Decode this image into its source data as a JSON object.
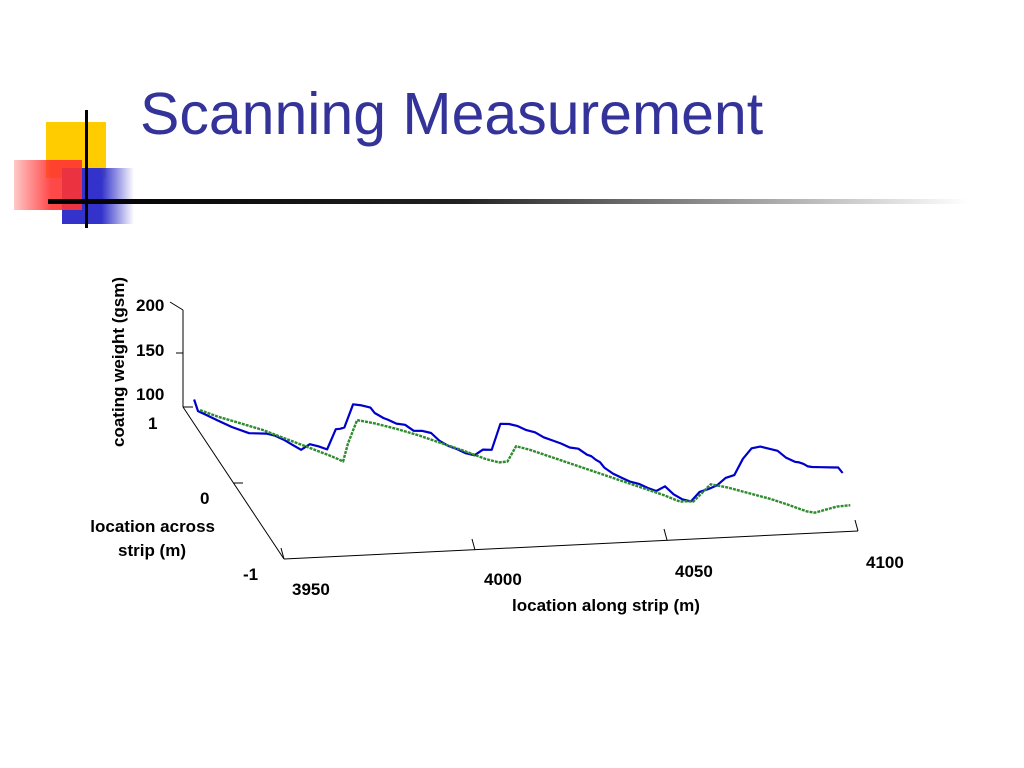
{
  "slide": {
    "title": "Scanning Measurement",
    "colors": {
      "title": "#333399",
      "deco_yellow": "#ffcc00",
      "deco_red": "#ff3333",
      "deco_blue": "#3333cc",
      "rule": "#000000"
    }
  },
  "chart_data": {
    "type": "line",
    "projection": "3d",
    "title": "",
    "xlabel": "location along strip (m)",
    "ylabel": "location across strip (m)",
    "zlabel": "coating weight (gsm)",
    "xlim": [
      3950,
      4100
    ],
    "ylim": [
      -1,
      1
    ],
    "zlim": [
      100,
      200
    ],
    "x_ticks": [
      "3950",
      "4000",
      "4050",
      "4100"
    ],
    "y_ticks": [
      "-1",
      "0",
      "1"
    ],
    "z_ticks": [
      "100",
      "150",
      "200"
    ],
    "grid": false,
    "series": [
      {
        "color": "#0000cc",
        "x": [
          3950.0,
          3950.5,
          3952,
          3955,
          3958,
          3962,
          3966,
          3968,
          3970,
          3972,
          3974,
          3976,
          3978,
          3980,
          3982,
          3983,
          3984,
          3986,
          3988,
          3990,
          3991,
          3992,
          3993,
          3994,
          3996,
          3998,
          4000,
          4002,
          4004,
          4006,
          4008,
          4010,
          4012,
          4014,
          4016,
          4018,
          4020,
          4022,
          4024,
          4026,
          4028,
          4030,
          4032,
          4034,
          4036,
          4038,
          4040,
          4041,
          4042,
          4043,
          4044,
          4046,
          4048,
          4050,
          4052,
          4054,
          4056,
          4058,
          4060,
          4062,
          4064,
          4066,
          4068,
          4070,
          4072,
          4074,
          4076,
          4078,
          4080,
          4082,
          4084,
          4086,
          4088,
          4089,
          4090,
          4091,
          4092,
          4094,
          4096,
          4098,
          4099
        ],
        "y": [
          0.78,
          0.74,
          0.72,
          0.68,
          0.64,
          0.6,
          0.56,
          0.54,
          0.52,
          0.5,
          0.48,
          0.46,
          0.44,
          0.42,
          0.4,
          0.39,
          0.38,
          0.36,
          0.34,
          0.32,
          0.31,
          0.3,
          0.29,
          0.28,
          0.26,
          0.24,
          0.22,
          0.2,
          0.18,
          0.16,
          0.14,
          0.12,
          0.1,
          0.08,
          0.06,
          0.04,
          0.02,
          0.0,
          -0.02,
          -0.04,
          -0.06,
          -0.08,
          -0.1,
          -0.12,
          -0.14,
          -0.16,
          -0.18,
          -0.19,
          -0.2,
          -0.21,
          -0.22,
          -0.24,
          -0.26,
          -0.28,
          -0.3,
          -0.32,
          -0.34,
          -0.36,
          -0.38,
          -0.4,
          -0.42,
          -0.44,
          -0.46,
          -0.48,
          -0.5,
          -0.52,
          -0.54,
          -0.56,
          -0.58,
          -0.6,
          -0.62,
          -0.64,
          -0.66,
          -0.67,
          -0.68,
          -0.69,
          -0.7,
          -0.72,
          -0.74,
          -0.76,
          -0.77
        ],
        "z": [
          125,
          116,
          114,
          110,
          106,
          102,
          104,
          103,
          100,
          96,
          92,
          99,
          98,
          96,
          118,
          119,
          121,
          146,
          146,
          145,
          140,
          138,
          136,
          135,
          132,
          132,
          127,
          128,
          127,
          120,
          116,
          114,
          111,
          110,
          117,
          118,
          146,
          147,
          146,
          143,
          142,
          138,
          136,
          134,
          131,
          131,
          126,
          125,
          122,
          120,
          115,
          110,
          107,
          104,
          103,
          100,
          98,
          104,
          97,
          93,
          92,
          103,
          107,
          112,
          121,
          125,
          143,
          155,
          158,
          157,
          156,
          150,
          147,
          147,
          146,
          144,
          144,
          145,
          146,
          147,
          142
        ]
      },
      {
        "color": "#2e8b2e",
        "x": [
          3951,
          3955,
          3960,
          3965,
          3970,
          3975,
          3980,
          3982,
          3983,
          3984,
          3986,
          3990,
          3995,
          4000,
          4005,
          4010,
          4015,
          4018,
          4019,
          4020,
          4022,
          4025,
          4030,
          4035,
          4040,
          4045,
          4050,
          4055,
          4058,
          4059,
          4060,
          4062,
          4066,
          4070,
          4075,
          4080,
          4084,
          4087,
          4088,
          4090,
          4095,
          4098
        ],
        "y": [
          0.74,
          0.68,
          0.62,
          0.56,
          0.5,
          0.44,
          0.38,
          0.35,
          0.33,
          0.31,
          0.28,
          0.24,
          0.18,
          0.12,
          0.06,
          0.0,
          -0.06,
          -0.1,
          -0.11,
          -0.12,
          -0.14,
          -0.18,
          -0.24,
          -0.3,
          -0.36,
          -0.42,
          -0.48,
          -0.54,
          -0.58,
          -0.59,
          -0.6,
          -0.62,
          -0.66,
          -0.7,
          -0.75,
          -0.8,
          -0.85,
          -0.88,
          -0.89,
          -0.9,
          -0.96,
          -1.0
        ],
        "z": [
          117,
          114,
          111,
          108,
          103,
          98,
          93,
          91,
          90,
          110,
          136,
          135,
          133,
          130,
          126,
          122,
          117,
          116,
          117,
          118,
          135,
          134,
          130,
          126,
          122,
          118,
          114,
          110,
          107,
          106,
          107,
          108,
          128,
          127,
          124,
          121,
          118,
          115,
          114,
          113,
          123,
          127
        ]
      }
    ]
  }
}
